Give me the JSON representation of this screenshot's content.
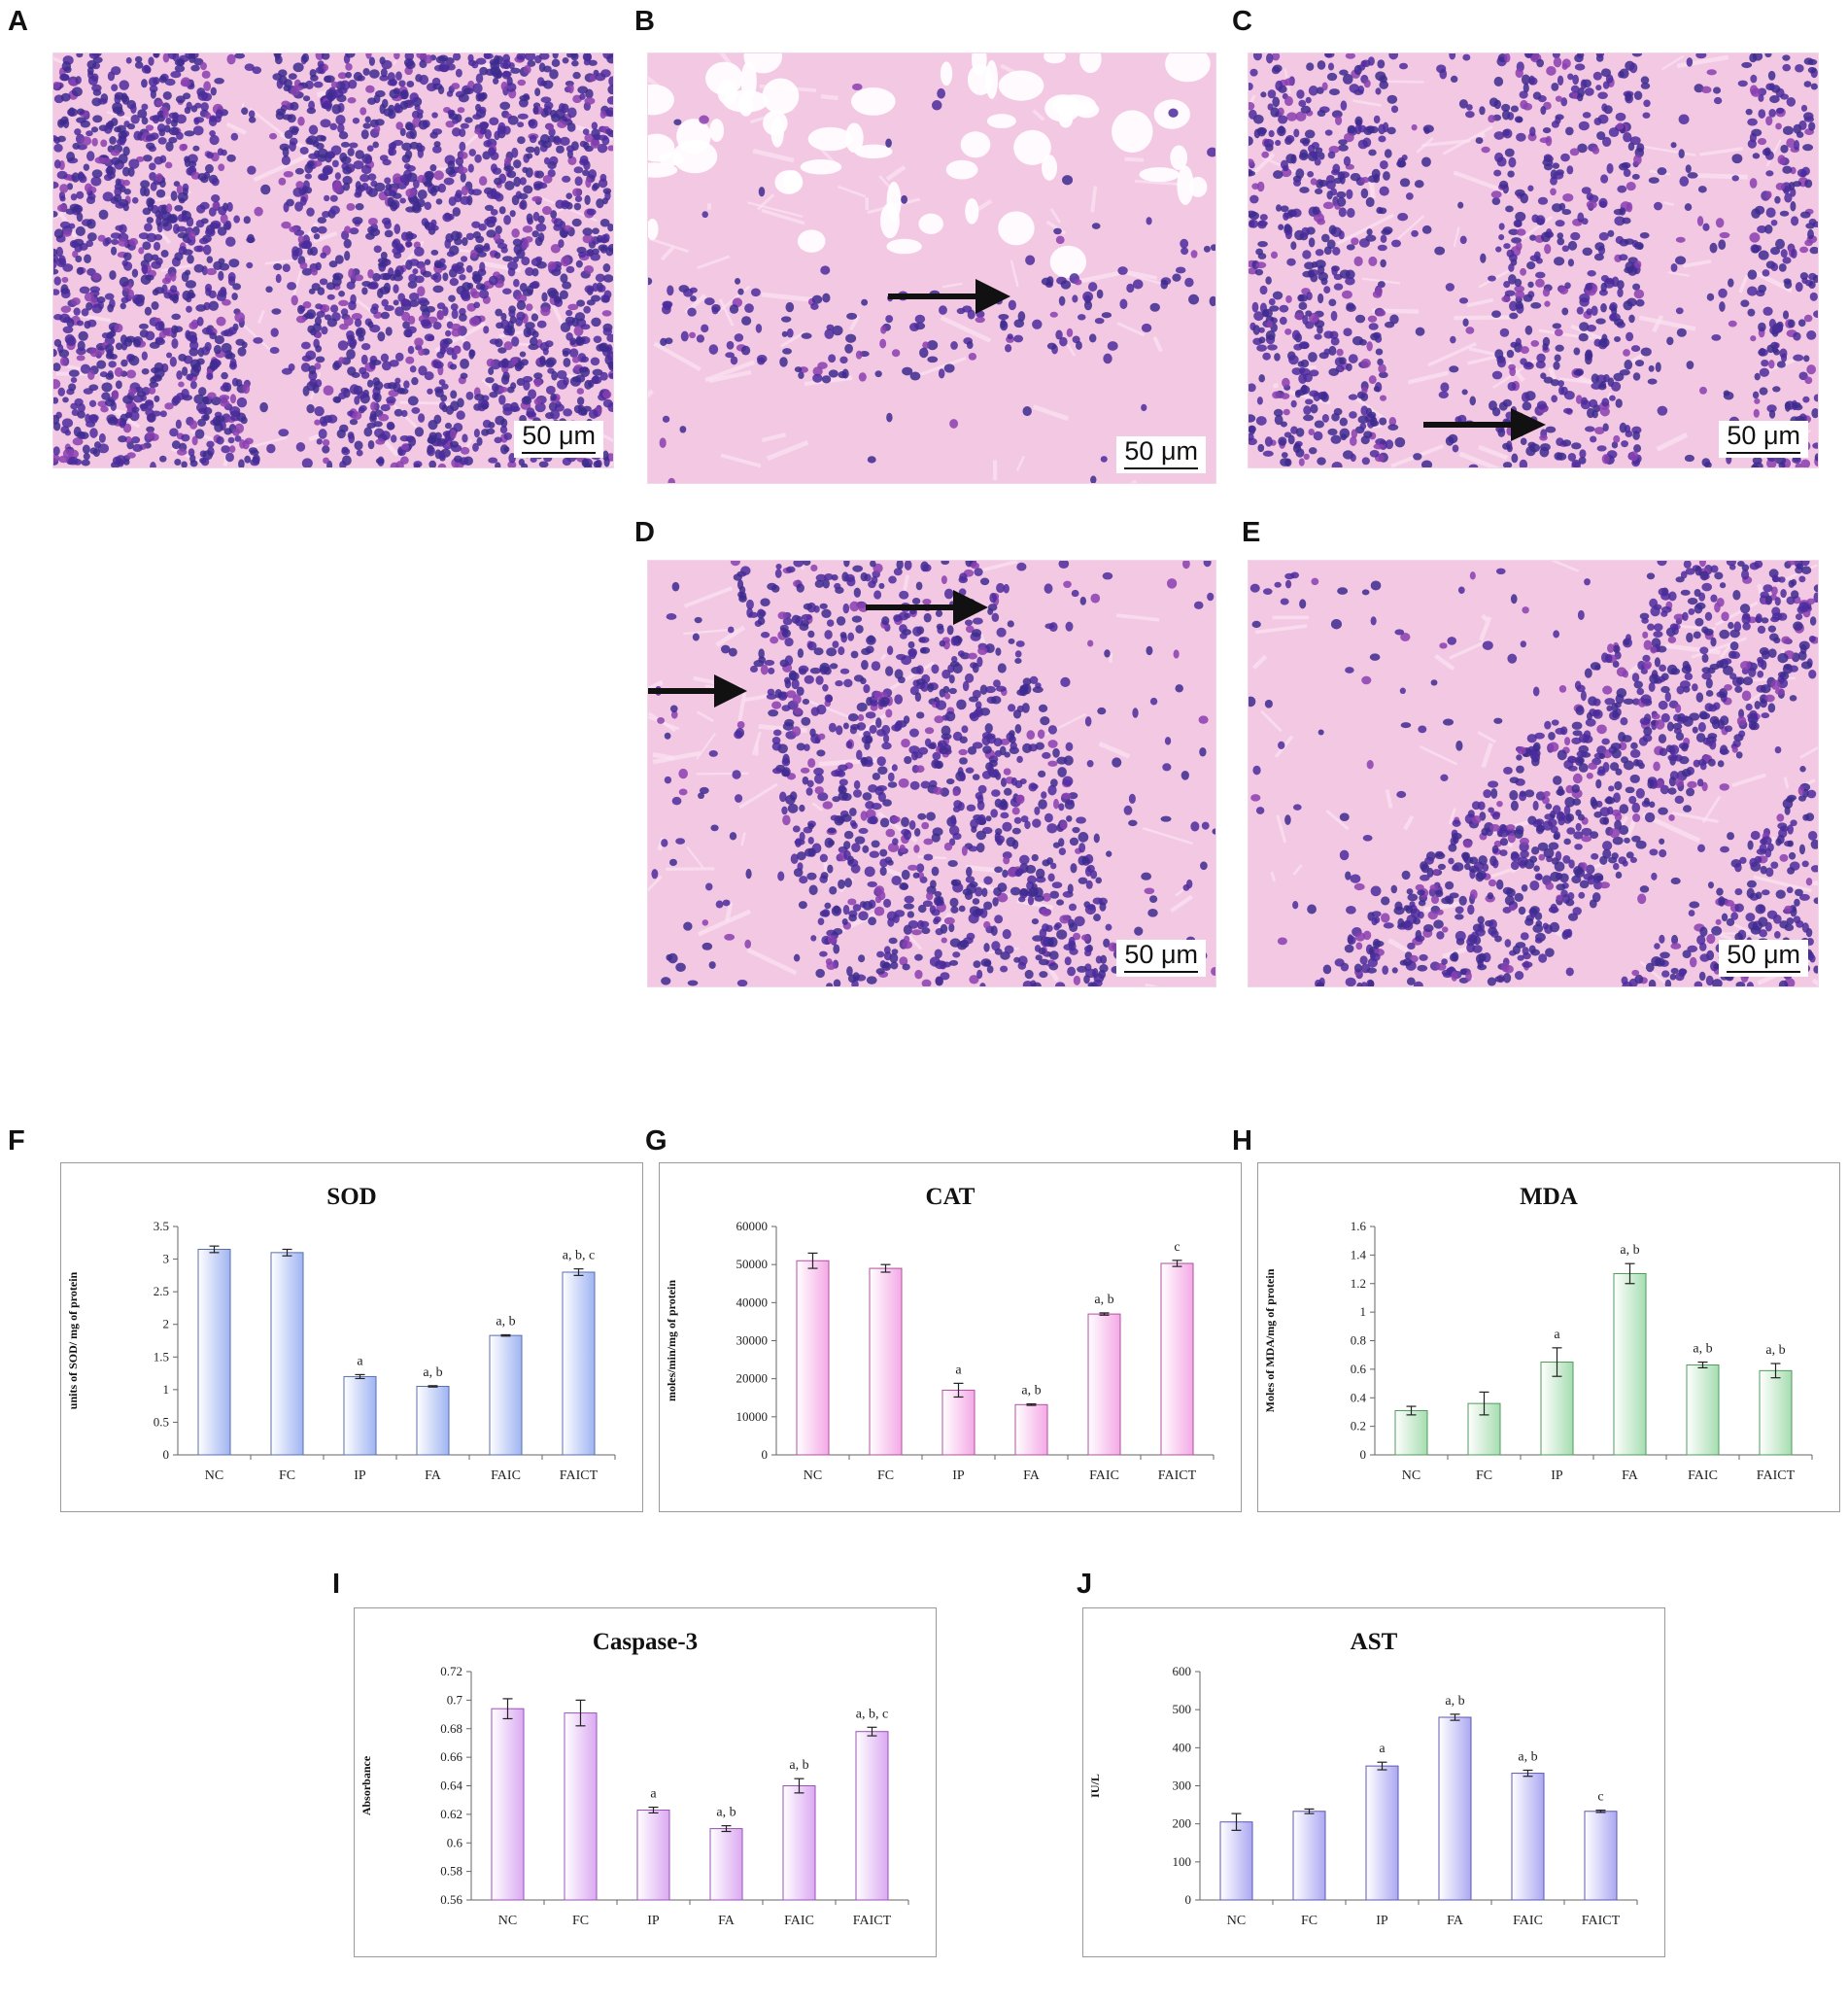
{
  "figure": {
    "panel_letters": [
      "A",
      "B",
      "C",
      "D",
      "E",
      "F",
      "G",
      "H",
      "I",
      "J"
    ],
    "micrographs": [
      {
        "letter": "A",
        "scale_label": "50 μm",
        "arrows": 0
      },
      {
        "letter": "B",
        "scale_label": "50 μm",
        "arrows": 1
      },
      {
        "letter": "C",
        "scale_label": "50 μm",
        "arrows": 1
      },
      {
        "letter": "D",
        "scale_label": "50 μm",
        "arrows": 2
      },
      {
        "letter": "E",
        "scale_label": "50 μm",
        "arrows": 0
      }
    ]
  },
  "colors": {
    "stain_pink": "#f3c8e3",
    "nuclei_purple": "#4b2b9c",
    "bar_blue": "#9fb4f2",
    "bar_pink": "#f4a9e6",
    "bar_green": "#a6ddb0",
    "bar_violet": "#dba9f2",
    "bar_periwinkle": "#aca8f2"
  },
  "chart_data": [
    {
      "letter": "F",
      "type": "bar",
      "title": "SOD",
      "xlabel": "",
      "ylabel": "units of SOD/ mg of protein",
      "categories": [
        "NC",
        "FC",
        "IP",
        "FA",
        "FAIC",
        "FAICT"
      ],
      "values": [
        3.15,
        3.1,
        1.2,
        1.05,
        1.83,
        2.8
      ],
      "errors": [
        0.05,
        0.05,
        0.03,
        0.01,
        0.01,
        0.05
      ],
      "annotations": [
        "",
        "",
        "a",
        "a, b",
        "a, b",
        "a, b, c"
      ],
      "ylim": [
        0,
        3.5
      ],
      "yticks": [
        0,
        0.5,
        1,
        1.5,
        2,
        2.5,
        3,
        3.5
      ],
      "ytick_labels": [
        "0",
        "0.5",
        "1",
        "1.5",
        "2",
        "2.5",
        "3",
        "3.5"
      ],
      "color": "#9fb4f2",
      "edge": "#5a6fae"
    },
    {
      "letter": "G",
      "type": "bar",
      "title": "CAT",
      "xlabel": "",
      "ylabel": "moles/min/mg of protein",
      "categories": [
        "NC",
        "FC",
        "IP",
        "FA",
        "FAIC",
        "FAICT"
      ],
      "values": [
        51000,
        49000,
        17000,
        13200,
        37000,
        50300
      ],
      "errors": [
        2000,
        1000,
        1800,
        200,
        300,
        800
      ],
      "annotations": [
        "",
        "",
        "a",
        "a, b",
        "a, b",
        "c"
      ],
      "ylim": [
        0,
        60000
      ],
      "yticks": [
        0,
        10000,
        20000,
        30000,
        40000,
        50000,
        60000
      ],
      "ytick_labels": [
        "0",
        "10000",
        "20000",
        "30000",
        "40000",
        "50000",
        "60000"
      ],
      "color": "#f4a9e6",
      "edge": "#b0509e"
    },
    {
      "letter": "H",
      "type": "bar",
      "title": "MDA",
      "xlabel": "",
      "ylabel": "Moles of MDA/mg of protein",
      "categories": [
        "NC",
        "FC",
        "IP",
        "FA",
        "FAIC",
        "FAICT"
      ],
      "values": [
        0.31,
        0.36,
        0.65,
        1.27,
        0.63,
        0.59
      ],
      "errors": [
        0.03,
        0.08,
        0.1,
        0.07,
        0.02,
        0.05
      ],
      "annotations": [
        "",
        "",
        "a",
        "a, b",
        "a, b",
        "a, b"
      ],
      "ylim": [
        0,
        1.6
      ],
      "yticks": [
        0,
        0.2,
        0.4,
        0.6,
        0.8,
        1,
        1.2,
        1.4,
        1.6
      ],
      "ytick_labels": [
        "0",
        "0.2",
        "0.4",
        "0.6",
        "0.8",
        "1",
        "1.2",
        "1.4",
        "1.6"
      ],
      "color": "#a6ddb0",
      "edge": "#4f9a5e"
    },
    {
      "letter": "I",
      "type": "bar",
      "title": "Caspase-3",
      "xlabel": "",
      "ylabel": "Absorbance",
      "categories": [
        "NC",
        "FC",
        "IP",
        "FA",
        "FAIC",
        "FAICT"
      ],
      "values": [
        0.694,
        0.691,
        0.623,
        0.61,
        0.64,
        0.678
      ],
      "errors": [
        0.007,
        0.009,
        0.002,
        0.002,
        0.005,
        0.003
      ],
      "annotations": [
        "",
        "",
        "a",
        "a, b",
        "a, b",
        "a, b, c"
      ],
      "ylim": [
        0.56,
        0.72
      ],
      "yticks": [
        0.56,
        0.58,
        0.6,
        0.62,
        0.64,
        0.66,
        0.68,
        0.7,
        0.72
      ],
      "ytick_labels": [
        "0.56",
        "0.58",
        "0.6",
        "0.62",
        "0.64",
        "0.66",
        "0.68",
        "0.7",
        "0.72"
      ],
      "color": "#dba9f2",
      "edge": "#9a52b8"
    },
    {
      "letter": "J",
      "type": "bar",
      "title": "AST",
      "xlabel": "",
      "ylabel": "IU/L",
      "categories": [
        "NC",
        "FC",
        "IP",
        "FA",
        "FAIC",
        "FAICT"
      ],
      "values": [
        205,
        233,
        352,
        480,
        333,
        233
      ],
      "errors": [
        22,
        6,
        10,
        8,
        8,
        3
      ],
      "annotations": [
        "",
        "",
        "a",
        "a, b",
        "a, b",
        "c"
      ],
      "ylim": [
        0,
        600
      ],
      "yticks": [
        0,
        100,
        200,
        300,
        400,
        500,
        600
      ],
      "ytick_labels": [
        "0",
        "100",
        "200",
        "300",
        "400",
        "500",
        "600"
      ],
      "color": "#aca8f2",
      "edge": "#5d58b0"
    }
  ]
}
